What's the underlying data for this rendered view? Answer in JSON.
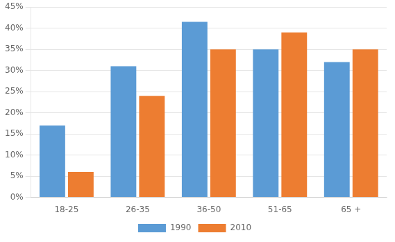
{
  "chart_data": {
    "type": "bar",
    "categories": [
      "18-25",
      "26-35",
      "36-50",
      "51-65",
      "65 +"
    ],
    "series": [
      {
        "name": "1990",
        "color": "#5B9BD5",
        "values": [
          0.17,
          0.31,
          0.415,
          0.35,
          0.32
        ]
      },
      {
        "name": "2010",
        "color": "#ED7D31",
        "values": [
          0.06,
          0.24,
          0.35,
          0.39,
          0.35
        ]
      }
    ],
    "ylim": [
      0,
      0.45
    ],
    "yticks": [
      {
        "value": 0,
        "label": "0%"
      },
      {
        "value": 0.05,
        "label": "5%"
      },
      {
        "value": 0.1,
        "label": "10%"
      },
      {
        "value": 0.15,
        "label": "15%"
      },
      {
        "value": 0.2,
        "label": "20%"
      },
      {
        "value": 0.25,
        "label": "25%"
      },
      {
        "value": 0.3,
        "label": "30%"
      },
      {
        "value": 0.35,
        "label": "35%"
      },
      {
        "value": 0.4,
        "label": "40%"
      },
      {
        "value": 0.45,
        "label": "45%"
      }
    ],
    "grid": true,
    "legend": "bottom"
  }
}
